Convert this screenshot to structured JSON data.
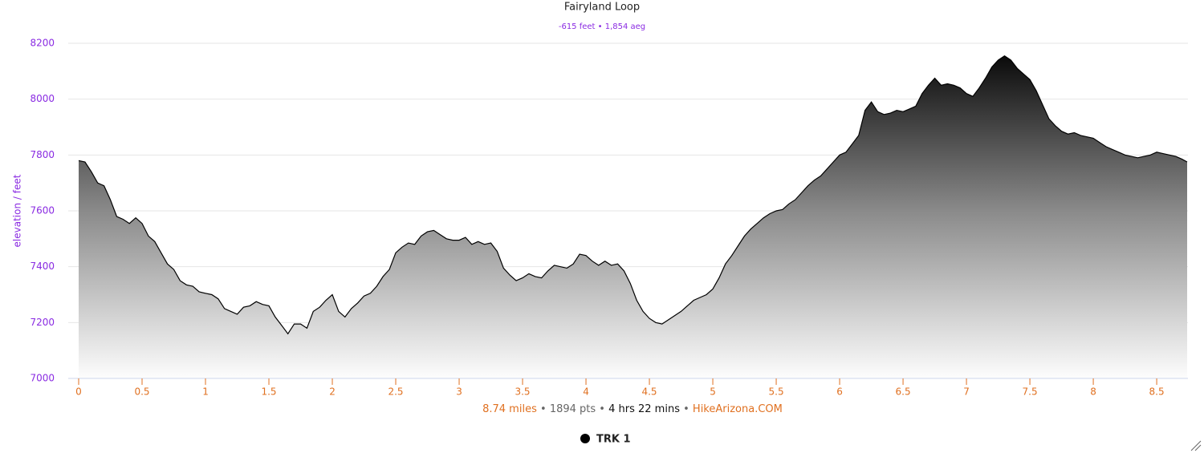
{
  "chart_data": {
    "type": "area",
    "title": "Fairyland Loop",
    "subtitle": "-615 feet • 1,854 aeg",
    "y_label": "elevation / feet",
    "footer": [
      "8.74 miles",
      "1894 pts",
      "4 hrs 22 mins",
      "HikeArizona.COM"
    ],
    "footer_separator": "•",
    "xlim": [
      0,
      8.74
    ],
    "xticks": [
      0,
      0.5,
      1,
      1.5,
      2,
      2.5,
      3,
      3.5,
      4,
      4.5,
      5,
      5.5,
      6,
      6.5,
      7,
      7.5,
      8,
      8.5
    ],
    "ylim": [
      7000,
      8200
    ],
    "yticks": [
      7000,
      7200,
      7400,
      7600,
      7800,
      8000,
      8200
    ],
    "grid": true,
    "legend": "bottom",
    "x": [
      0,
      0.05,
      0.1,
      0.15,
      0.2,
      0.25,
      0.3,
      0.35,
      0.4,
      0.45,
      0.5,
      0.55,
      0.6,
      0.65,
      0.7,
      0.75,
      0.8,
      0.85,
      0.9,
      0.95,
      1,
      1.05,
      1.1,
      1.15,
      1.2,
      1.25,
      1.3,
      1.35,
      1.4,
      1.45,
      1.5,
      1.55,
      1.6,
      1.65,
      1.7,
      1.75,
      1.8,
      1.85,
      1.9,
      1.95,
      2,
      2.05,
      2.1,
      2.15,
      2.2,
      2.25,
      2.3,
      2.35,
      2.4,
      2.45,
      2.5,
      2.55,
      2.6,
      2.65,
      2.7,
      2.75,
      2.8,
      2.85,
      2.9,
      2.95,
      3,
      3.05,
      3.1,
      3.15,
      3.2,
      3.25,
      3.3,
      3.35,
      3.4,
      3.45,
      3.5,
      3.55,
      3.6,
      3.65,
      3.7,
      3.75,
      3.8,
      3.85,
      3.9,
      3.95,
      4,
      4.05,
      4.1,
      4.15,
      4.2,
      4.25,
      4.3,
      4.35,
      4.4,
      4.45,
      4.5,
      4.55,
      4.6,
      4.65,
      4.7,
      4.75,
      4.8,
      4.85,
      4.9,
      4.95,
      5,
      5.05,
      5.1,
      5.15,
      5.2,
      5.25,
      5.3,
      5.35,
      5.4,
      5.45,
      5.5,
      5.55,
      5.6,
      5.65,
      5.7,
      5.75,
      5.8,
      5.85,
      5.9,
      5.95,
      6,
      6.05,
      6.1,
      6.15,
      6.2,
      6.25,
      6.3,
      6.35,
      6.4,
      6.45,
      6.5,
      6.55,
      6.6,
      6.65,
      6.7,
      6.75,
      6.8,
      6.85,
      6.9,
      6.95,
      7,
      7.05,
      7.1,
      7.15,
      7.2,
      7.25,
      7.3,
      7.35,
      7.4,
      7.45,
      7.5,
      7.55,
      7.6,
      7.65,
      7.7,
      7.75,
      7.8,
      7.85,
      7.9,
      7.95,
      8,
      8.05,
      8.1,
      8.15,
      8.2,
      8.25,
      8.3,
      8.35,
      8.4,
      8.45,
      8.5,
      8.55,
      8.6,
      8.65,
      8.7,
      8.74
    ],
    "series": [
      {
        "name": "TRK 1",
        "color": "#000000",
        "values": [
          7780,
          7775,
          7740,
          7700,
          7690,
          7640,
          7580,
          7570,
          7555,
          7575,
          7555,
          7510,
          7490,
          7450,
          7410,
          7390,
          7350,
          7335,
          7330,
          7310,
          7305,
          7300,
          7285,
          7250,
          7240,
          7230,
          7255,
          7260,
          7275,
          7265,
          7260,
          7220,
          7190,
          7160,
          7195,
          7195,
          7180,
          7240,
          7255,
          7280,
          7300,
          7240,
          7220,
          7250,
          7270,
          7295,
          7305,
          7330,
          7365,
          7390,
          7450,
          7470,
          7485,
          7480,
          7510,
          7525,
          7530,
          7515,
          7500,
          7495,
          7495,
          7505,
          7480,
          7490,
          7480,
          7485,
          7455,
          7395,
          7370,
          7350,
          7360,
          7375,
          7365,
          7360,
          7385,
          7405,
          7400,
          7395,
          7410,
          7445,
          7440,
          7420,
          7405,
          7420,
          7405,
          7410,
          7385,
          7340,
          7280,
          7240,
          7215,
          7200,
          7195,
          7210,
          7225,
          7240,
          7260,
          7280,
          7290,
          7300,
          7320,
          7360,
          7410,
          7440,
          7475,
          7510,
          7535,
          7555,
          7575,
          7590,
          7600,
          7605,
          7625,
          7640,
          7665,
          7690,
          7710,
          7725,
          7750,
          7775,
          7800,
          7810,
          7840,
          7870,
          7960,
          7990,
          7955,
          7945,
          7950,
          7960,
          7955,
          7965,
          7975,
          8020,
          8050,
          8075,
          8050,
          8055,
          8050,
          8040,
          8020,
          8010,
          8040,
          8075,
          8115,
          8140,
          8155,
          8140,
          8110,
          8090,
          8070,
          8030,
          7980,
          7930,
          7905,
          7885,
          7875,
          7880,
          7870,
          7865,
          7860,
          7845,
          7830,
          7820,
          7810,
          7800,
          7795,
          7790,
          7795,
          7800,
          7810,
          7805,
          7800,
          7795,
          7785,
          7775
        ]
      }
    ]
  }
}
